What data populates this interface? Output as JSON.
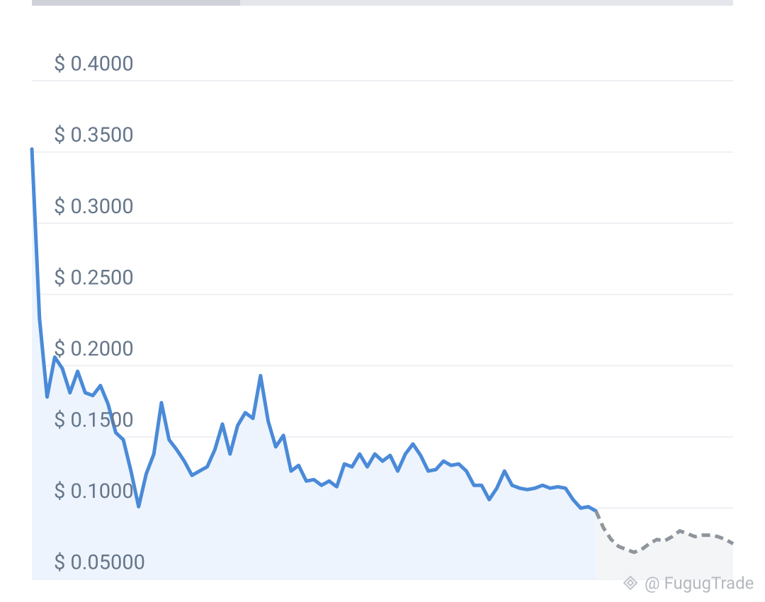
{
  "chart_data": {
    "type": "line",
    "ylim": [
      0.05,
      0.4
    ],
    "yticks": [
      {
        "value": 0.4,
        "label": "$ 0.4000"
      },
      {
        "value": 0.35,
        "label": "$ 0.3500"
      },
      {
        "value": 0.3,
        "label": "$ 0.3000"
      },
      {
        "value": 0.25,
        "label": "$ 0.2500"
      },
      {
        "value": 0.2,
        "label": "$ 0.2000"
      },
      {
        "value": 0.15,
        "label": "$ 0.1500"
      },
      {
        "value": 0.1,
        "label": "$ 0.1000"
      },
      {
        "value": 0.05,
        "label": "$ 0.05000"
      }
    ],
    "grid": true,
    "series": [
      {
        "color": "#4a8ad8",
        "dashed": false,
        "area_color": "#edf4fd",
        "values": [
          0.352,
          0.233,
          0.178,
          0.206,
          0.198,
          0.181,
          0.196,
          0.181,
          0.179,
          0.186,
          0.173,
          0.153,
          0.148,
          0.126,
          0.101,
          0.124,
          0.138,
          0.174,
          0.148,
          0.141,
          0.133,
          0.123,
          0.126,
          0.129,
          0.141,
          0.159,
          0.138,
          0.158,
          0.167,
          0.163,
          0.193,
          0.161,
          0.143,
          0.151,
          0.126,
          0.13,
          0.119,
          0.12,
          0.116,
          0.119,
          0.115,
          0.131,
          0.129,
          0.138,
          0.129,
          0.138,
          0.133,
          0.137,
          0.126,
          0.138,
          0.145,
          0.137,
          0.126,
          0.127,
          0.133,
          0.13,
          0.131,
          0.126,
          0.116,
          0.116,
          0.106,
          0.114,
          0.126,
          0.116,
          0.114,
          0.113,
          0.114,
          0.116,
          0.114,
          0.115,
          0.114,
          0.106,
          0.1,
          0.101,
          0.098,
          null,
          null,
          null,
          null,
          null,
          null,
          null,
          null,
          null,
          null,
          null,
          null,
          null,
          null,
          null,
          null,
          null,
          null
        ]
      },
      {
        "color": "#8f959c",
        "dashed": true,
        "area_color": "#f4f5f7",
        "values": [
          null,
          null,
          null,
          null,
          null,
          null,
          null,
          null,
          null,
          null,
          null,
          null,
          null,
          null,
          null,
          null,
          null,
          null,
          null,
          null,
          null,
          null,
          null,
          null,
          null,
          null,
          null,
          null,
          null,
          null,
          null,
          null,
          null,
          null,
          null,
          null,
          null,
          null,
          null,
          null,
          null,
          null,
          null,
          null,
          null,
          null,
          null,
          null,
          null,
          null,
          null,
          null,
          null,
          null,
          null,
          null,
          null,
          null,
          null,
          null,
          null,
          null,
          null,
          null,
          null,
          null,
          null,
          null,
          null,
          null,
          null,
          null,
          null,
          null,
          0.098,
          0.086,
          0.078,
          0.073,
          0.071,
          0.069,
          0.071,
          0.075,
          0.078,
          0.077,
          0.08,
          0.084,
          0.082,
          0.08,
          0.081,
          0.081,
          0.08,
          0.078,
          0.075
        ]
      }
    ],
    "watermark": "@ FugugTrade"
  }
}
